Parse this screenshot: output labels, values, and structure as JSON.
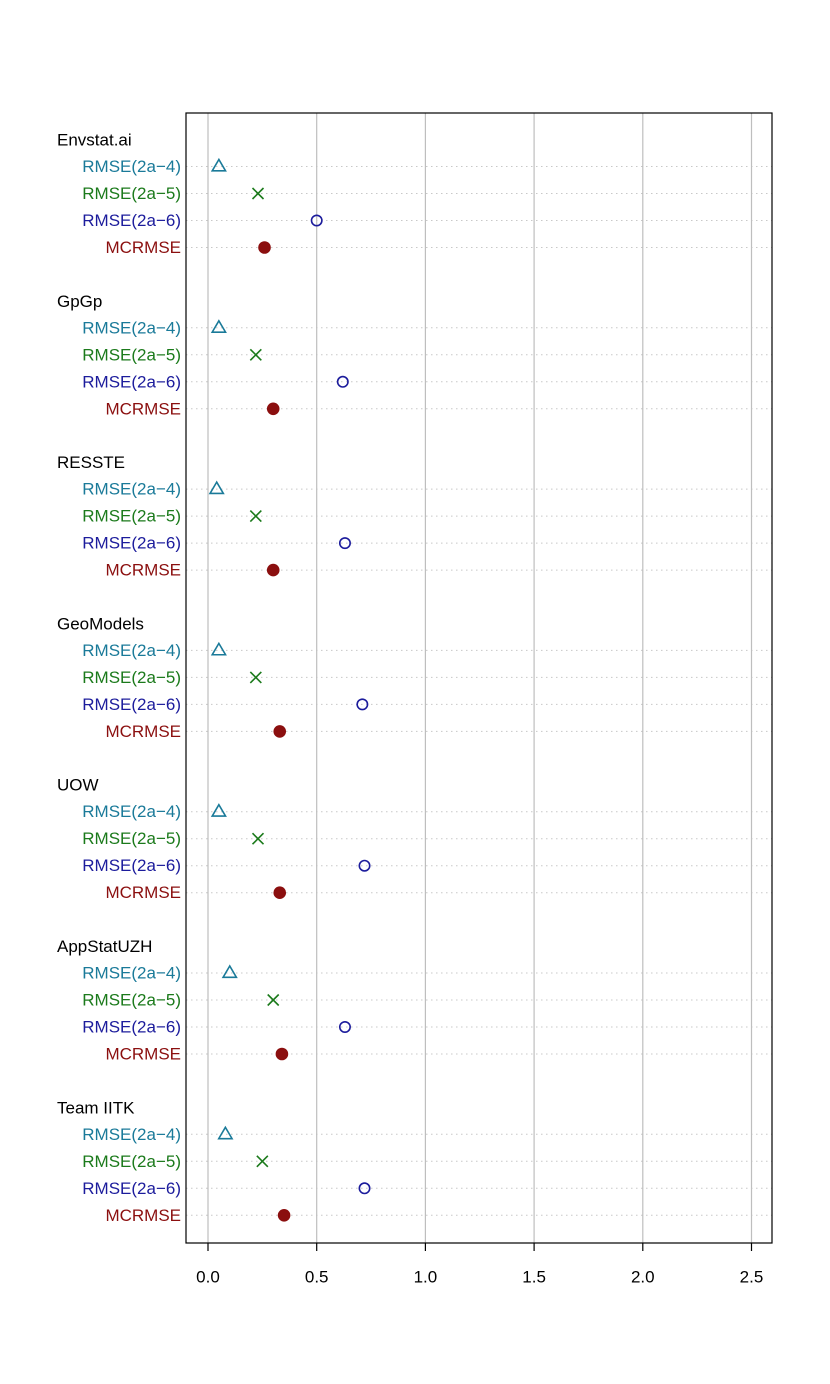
{
  "colors": {
    "rmse_2a4": "#1a7a99",
    "rmse_2a5": "#1b7a1b",
    "rmse_2a6": "#1c1c9c",
    "mcrmse": "#8b0f0f",
    "grid": "#bebebe",
    "dotted": "#c8c8c8",
    "frame": "#000000",
    "group_title": "#000000"
  },
  "chart_data": {
    "type": "dotplot",
    "xlim": [
      -0.1,
      2.6
    ],
    "x_ticks": [
      "0.0",
      "0.5",
      "1.0",
      "1.5",
      "2.0",
      "2.5"
    ],
    "grid": true,
    "series": [
      {
        "name": "RMSE(2a−4)",
        "marker": "triangle",
        "color_key": "rmse_2a4"
      },
      {
        "name": "RMSE(2a−5)",
        "marker": "cross",
        "color_key": "rmse_2a5"
      },
      {
        "name": "RMSE(2a−6)",
        "marker": "open-circle",
        "color_key": "rmse_2a6"
      },
      {
        "name": "MCRMSE",
        "marker": "filled-circle",
        "color_key": "mcrmse"
      }
    ],
    "groups": [
      {
        "name": "Envstat.ai",
        "values": [
          0.05,
          0.23,
          0.5,
          0.26
        ]
      },
      {
        "name": "GpGp",
        "values": [
          0.05,
          0.22,
          0.62,
          0.3
        ]
      },
      {
        "name": "RESSTE",
        "values": [
          0.04,
          0.22,
          0.63,
          0.3
        ]
      },
      {
        "name": "GeoModels",
        "values": [
          0.05,
          0.22,
          0.71,
          0.33
        ]
      },
      {
        "name": "UOW",
        "values": [
          0.05,
          0.23,
          0.72,
          0.33
        ]
      },
      {
        "name": "AppStatUZH",
        "values": [
          0.1,
          0.3,
          0.63,
          0.34
        ]
      },
      {
        "name": "Team IITK",
        "values": [
          0.08,
          0.25,
          0.72,
          0.35
        ]
      }
    ]
  }
}
